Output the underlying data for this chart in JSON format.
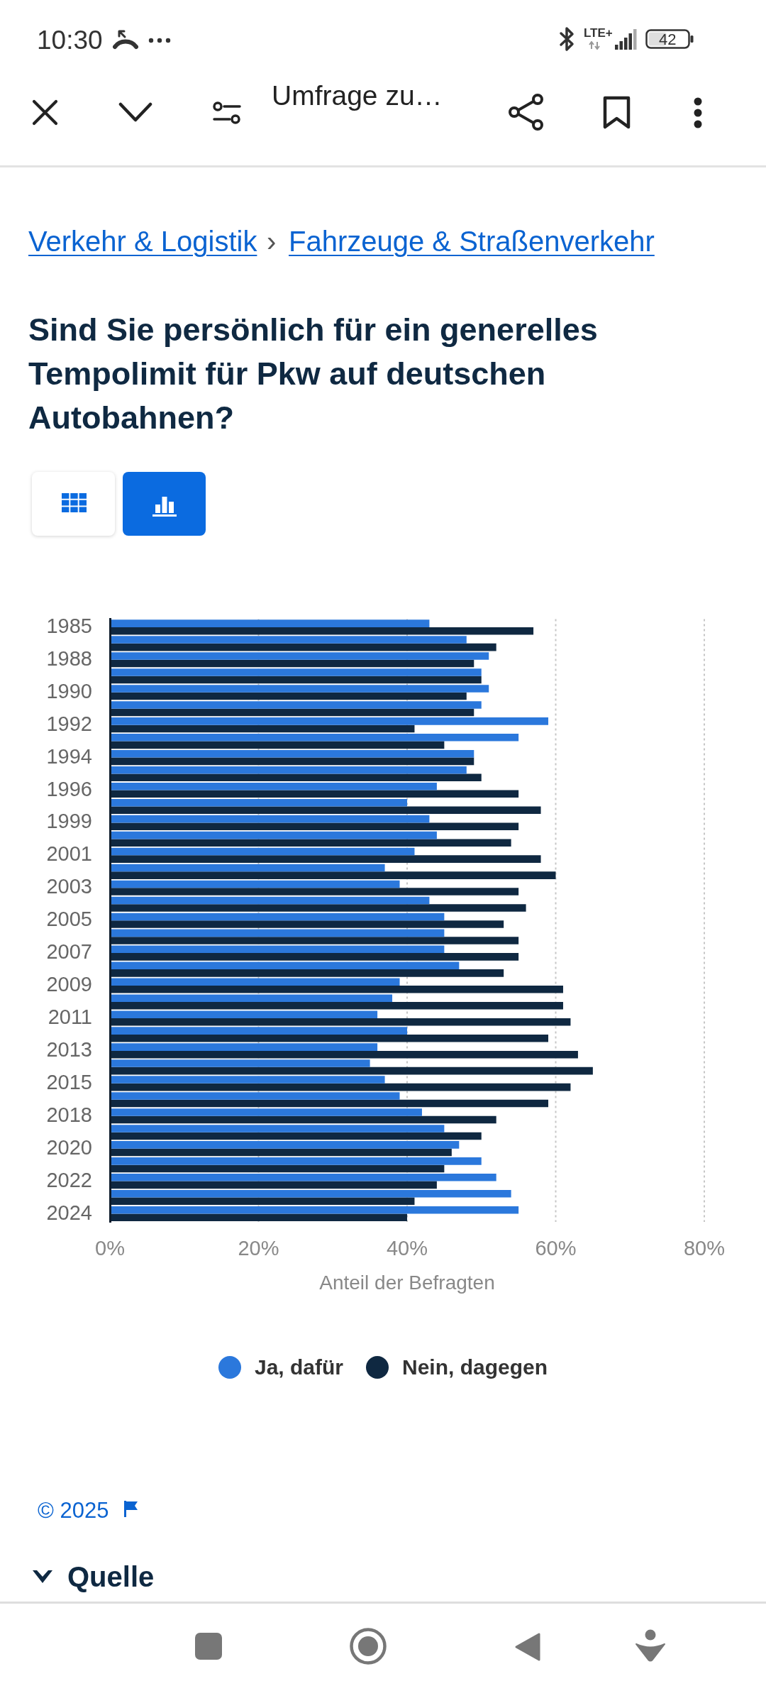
{
  "chart_data": {
    "type": "bar",
    "orientation": "horizontal",
    "title": "Sind Sie persönlich für ein generelles Tempolimit für Pkw auf deutschen Autobahnen?",
    "xlabel": "Anteil der Befragten",
    "annotations": [
      "10:30",
      "LTE+",
      "42",
      "Umfrage zu…",
      "Verkehr & Logistik",
      "›",
      "Fahrzeuge & Straßenverkehr",
      "© 2025",
      "Quelle"
    ],
    "categories": [
      "1985",
      null,
      "1988",
      null,
      "1990",
      null,
      "1992",
      null,
      "1994",
      null,
      "1996",
      null,
      "1999",
      null,
      "2001",
      null,
      "2003",
      null,
      "2005",
      null,
      "2007",
      null,
      "2009",
      null,
      "2011",
      null,
      "2013",
      null,
      "2015",
      null,
      "2018",
      null,
      "2020",
      null,
      "2022",
      null,
      "2024"
    ],
    "series": [
      {
        "name": "Ja, dafür",
        "color": "#2b78dc",
        "values": [
          43,
          48,
          51,
          50,
          51,
          50,
          59,
          55,
          49,
          48,
          44,
          40,
          43,
          44,
          41,
          37,
          39,
          43,
          45,
          45,
          45,
          47,
          39,
          38,
          36,
          40,
          36,
          35,
          37,
          39,
          42,
          45,
          47,
          50,
          52,
          54,
          55
        ]
      },
      {
        "name": "Nein, dagegen",
        "color": "#0f2841",
        "values": [
          57,
          52,
          49,
          50,
          48,
          49,
          41,
          45,
          49,
          50,
          55,
          58,
          55,
          54,
          58,
          60,
          55,
          56,
          53,
          55,
          55,
          53,
          61,
          61,
          62,
          59,
          63,
          65,
          62,
          59,
          52,
          50,
          46,
          45,
          44,
          41,
          40
        ]
      }
    ],
    "xlim": [
      0,
      80
    ],
    "xticks": [
      {
        "value": 0,
        "label": "0%"
      },
      {
        "value": 20,
        "label": "20%"
      },
      {
        "value": 40,
        "label": "40%"
      },
      {
        "value": 60,
        "label": "60%"
      },
      {
        "value": 80,
        "label": "80%"
      }
    ],
    "grid": "x",
    "legend": "bottom"
  }
}
